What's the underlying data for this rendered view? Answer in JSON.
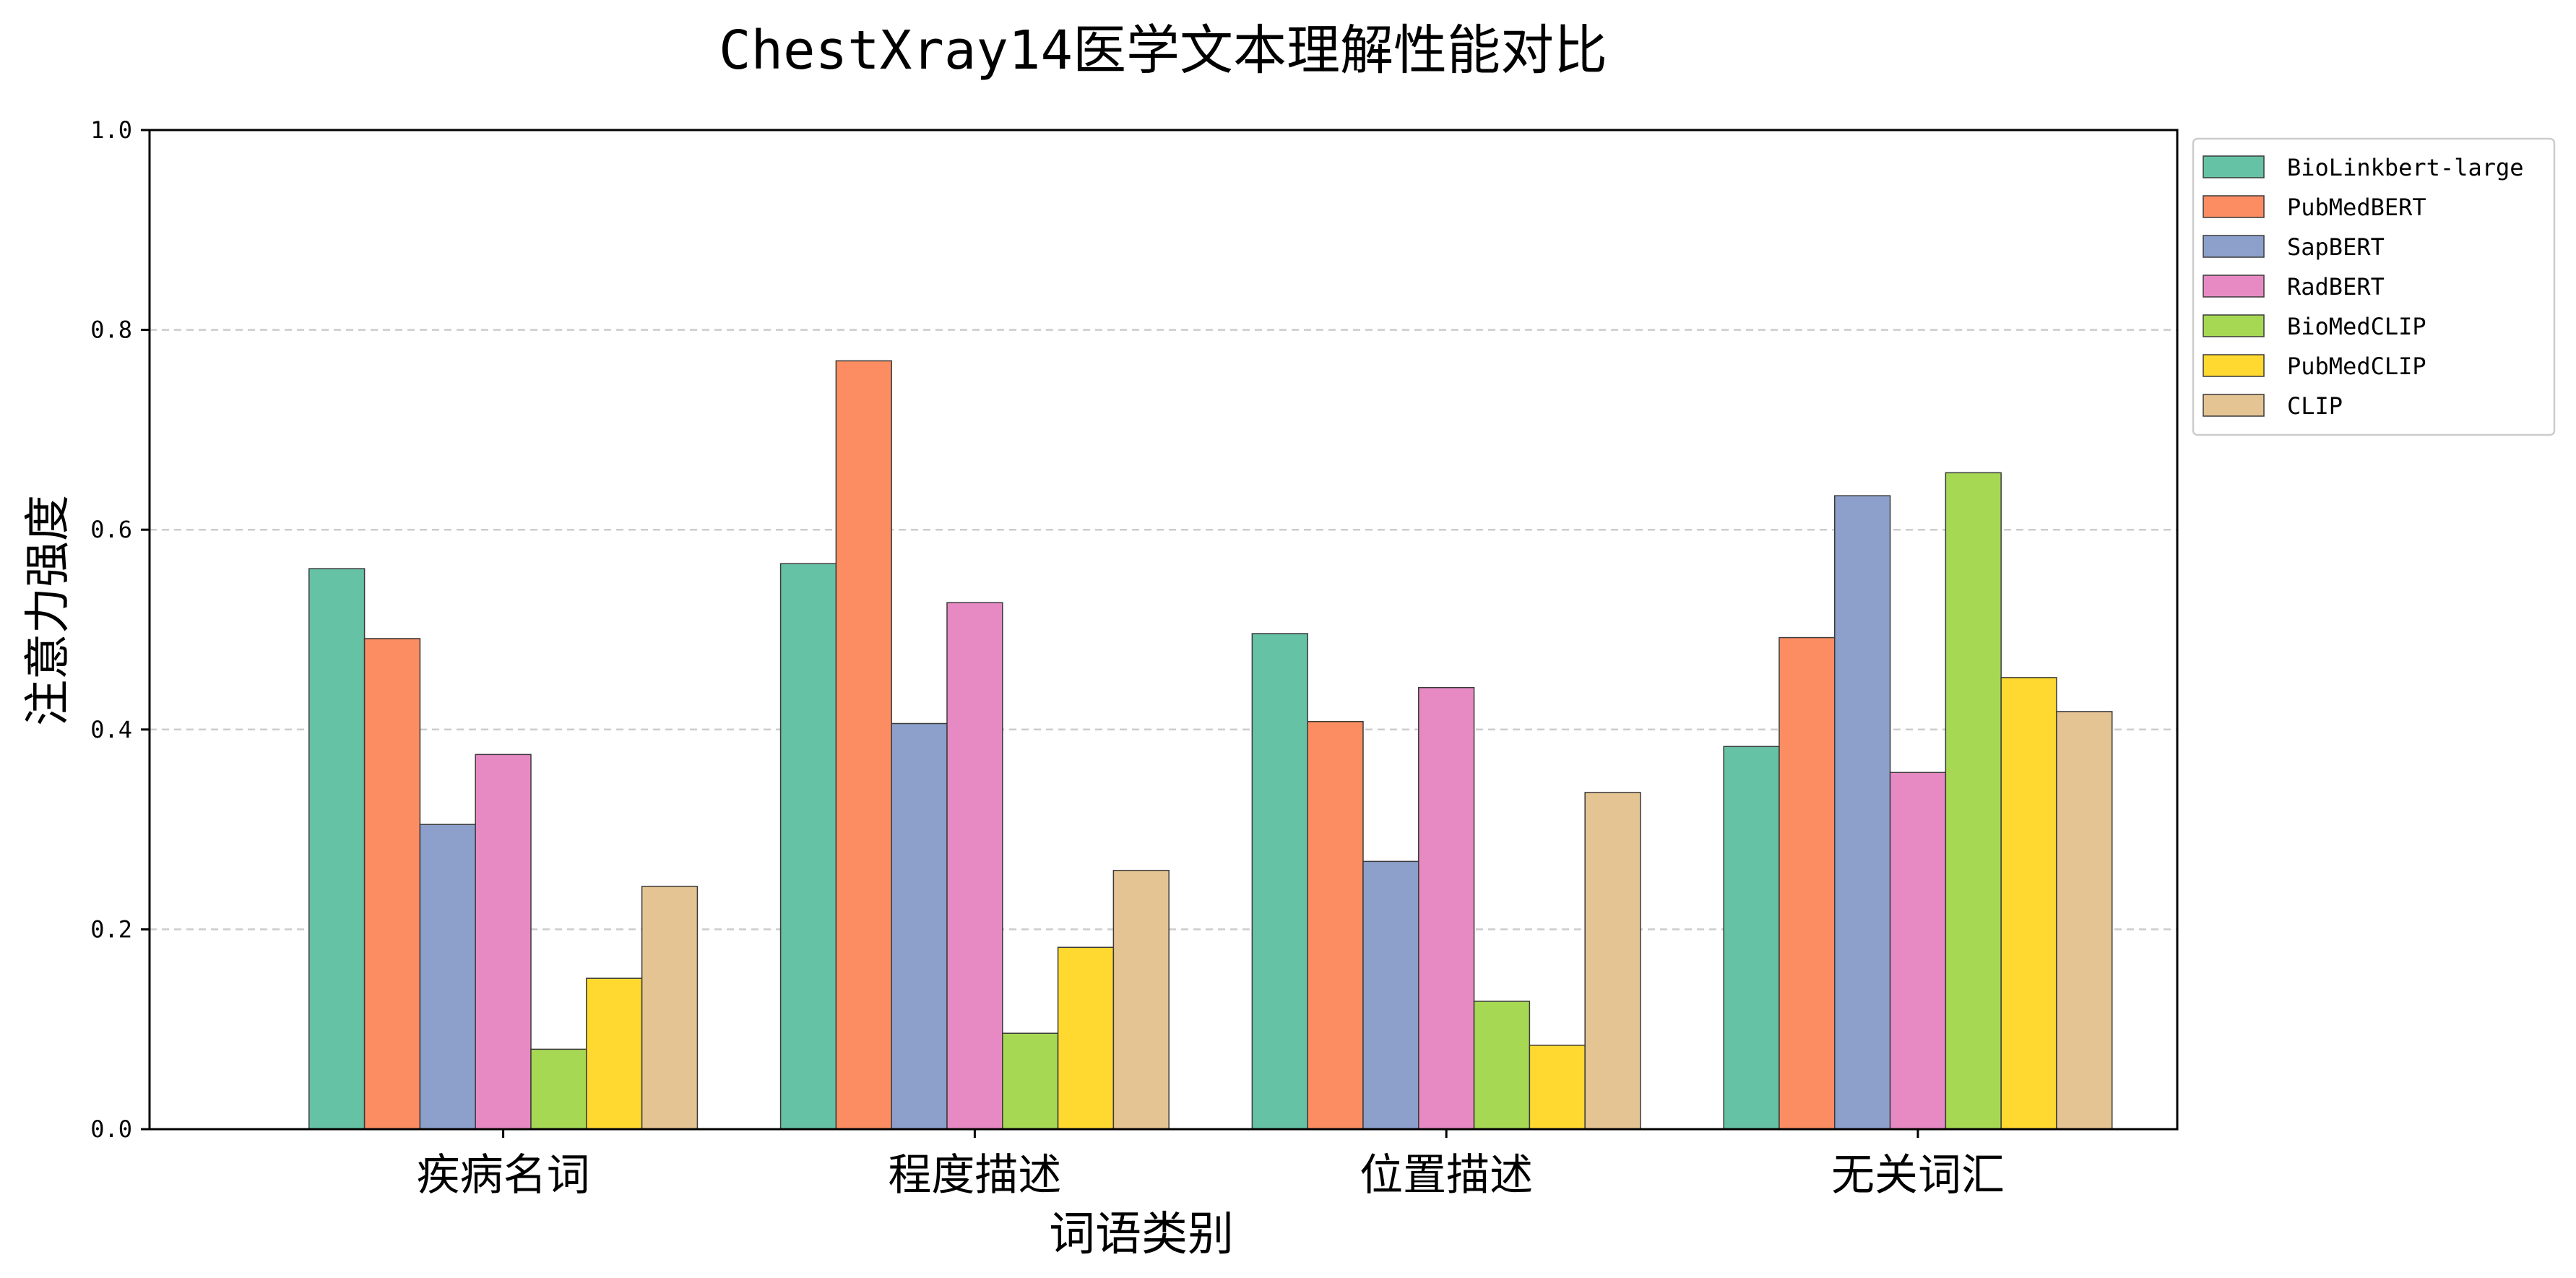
{
  "chart_data": {
    "type": "bar",
    "title": "ChestXray14医学文本理解性能对比",
    "xlabel": "词语类别",
    "ylabel": "注意力强度",
    "categories": [
      "疾病名词",
      "程度描述",
      "位置描述",
      "无关词汇"
    ],
    "ylim": [
      0,
      1.0
    ],
    "yticks": [
      "0.0",
      "0.2",
      "0.4",
      "0.6",
      "0.8",
      "1.0"
    ],
    "grid": "y-dashed",
    "legend_position": "outside-top-right",
    "series": [
      {
        "name": "BioLinkbert-large",
        "color": "#66c2a5",
        "values": [
          0.561,
          0.566,
          0.496,
          0.383
        ]
      },
      {
        "name": "PubMedBERT",
        "color": "#fc8d62",
        "values": [
          0.491,
          0.769,
          0.408,
          0.492
        ]
      },
      {
        "name": "SapBERT",
        "color": "#8da0cb",
        "values": [
          0.305,
          0.406,
          0.268,
          0.634
        ]
      },
      {
        "name": "RadBERT",
        "color": "#e78ac3",
        "values": [
          0.375,
          0.527,
          0.442,
          0.357
        ]
      },
      {
        "name": "BioMedCLIP",
        "color": "#a6d854",
        "values": [
          0.08,
          0.096,
          0.128,
          0.657
        ]
      },
      {
        "name": "PubMedCLIP",
        "color": "#ffd92f",
        "values": [
          0.151,
          0.182,
          0.084,
          0.452
        ]
      },
      {
        "name": "CLIP",
        "color": "#e5c494",
        "values": [
          0.243,
          0.259,
          0.337,
          0.418
        ]
      }
    ]
  }
}
